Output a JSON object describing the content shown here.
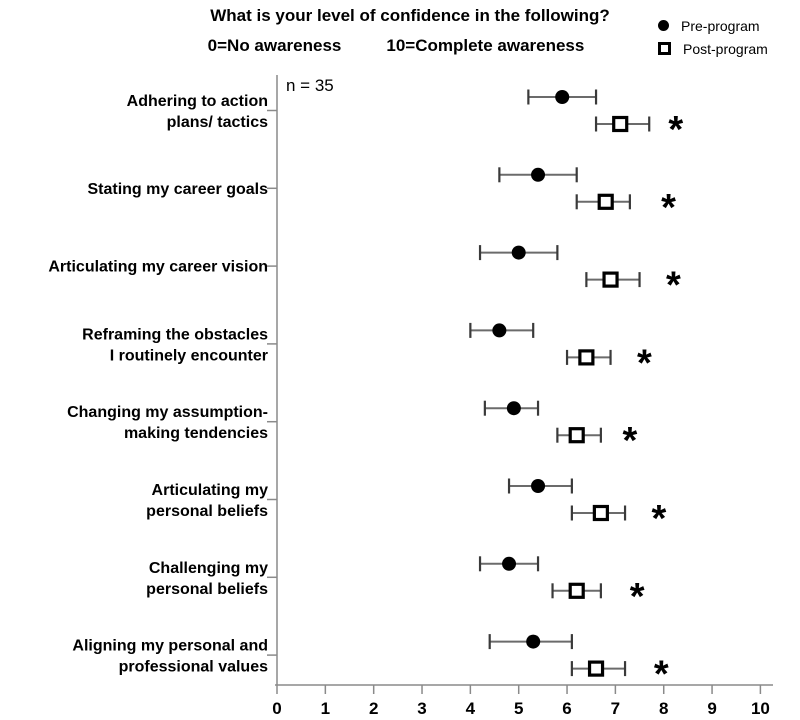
{
  "chart_data": {
    "type": "scatter",
    "subtype": "horizontal-dot-plot-with-error-bars",
    "title": "What is your level of confidence in the following?",
    "subtitle_left": "0=No awareness",
    "subtitle_right": "10=Complete awareness",
    "annotation": "n = 35",
    "significance_marker": "*",
    "xlabel": "",
    "ylabel": "",
    "xlim": [
      0,
      10
    ],
    "xticks": [
      0,
      1,
      2,
      3,
      4,
      5,
      6,
      7,
      8,
      9,
      10
    ],
    "grid": false,
    "legend_position": "top-right",
    "legend": [
      {
        "label": "Pre-program",
        "marker": "filled-circle"
      },
      {
        "label": "Post-program",
        "marker": "open-square"
      }
    ],
    "categories": [
      {
        "label": "Adhering to action plans/ tactics",
        "label_lines": [
          "Adhering to action",
          "plans/ tactics"
        ],
        "pre": {
          "value": 5.9,
          "lo": 5.2,
          "hi": 6.6
        },
        "post": {
          "value": 7.1,
          "lo": 6.6,
          "hi": 7.7
        },
        "significant": true,
        "sig_x": 8.25
      },
      {
        "label": "Stating my career goals",
        "label_lines": [
          "Stating my career goals"
        ],
        "pre": {
          "value": 5.4,
          "lo": 4.6,
          "hi": 6.2
        },
        "post": {
          "value": 6.8,
          "lo": 6.2,
          "hi": 7.3
        },
        "significant": true,
        "sig_x": 8.1
      },
      {
        "label": "Articulating my career vision",
        "label_lines": [
          "Articulating my career vision"
        ],
        "pre": {
          "value": 5.0,
          "lo": 4.2,
          "hi": 5.8
        },
        "post": {
          "value": 6.9,
          "lo": 6.4,
          "hi": 7.5
        },
        "significant": true,
        "sig_x": 8.2
      },
      {
        "label": "Reframing the obstacles I routinely encounter",
        "label_lines": [
          "Reframing the obstacles",
          "I routinely encounter"
        ],
        "pre": {
          "value": 4.6,
          "lo": 4.0,
          "hi": 5.3
        },
        "post": {
          "value": 6.4,
          "lo": 6.0,
          "hi": 6.9
        },
        "significant": true,
        "sig_x": 7.6
      },
      {
        "label": "Changing my assumption-making tendencies",
        "label_lines": [
          "Changing my assumption-",
          "making tendencies"
        ],
        "pre": {
          "value": 4.9,
          "lo": 4.3,
          "hi": 5.4
        },
        "post": {
          "value": 6.2,
          "lo": 5.8,
          "hi": 6.7
        },
        "significant": true,
        "sig_x": 7.3
      },
      {
        "label": "Articulating my personal beliefs",
        "label_lines": [
          "Articulating my",
          "personal beliefs"
        ],
        "pre": {
          "value": 5.4,
          "lo": 4.8,
          "hi": 6.1
        },
        "post": {
          "value": 6.7,
          "lo": 6.1,
          "hi": 7.2
        },
        "significant": true,
        "sig_x": 7.9
      },
      {
        "label": "Challenging my personal beliefs",
        "label_lines": [
          "Challenging my",
          "personal beliefs"
        ],
        "pre": {
          "value": 4.8,
          "lo": 4.2,
          "hi": 5.4
        },
        "post": {
          "value": 6.2,
          "lo": 5.7,
          "hi": 6.7
        },
        "significant": true,
        "sig_x": 7.45
      },
      {
        "label": "Aligning my personal and professional values",
        "label_lines": [
          "Aligning my personal and",
          "professional values"
        ],
        "pre": {
          "value": 5.3,
          "lo": 4.4,
          "hi": 6.1
        },
        "post": {
          "value": 6.6,
          "lo": 6.1,
          "hi": 7.2
        },
        "significant": true,
        "sig_x": 7.95
      }
    ],
    "colors": {
      "marker": "#000000",
      "errorbar_line": "#6b6b6b",
      "errorbar_cap": "#3a3a3a",
      "axis": "#8a8a8a",
      "text": "#000000",
      "background": "#ffffff"
    }
  }
}
